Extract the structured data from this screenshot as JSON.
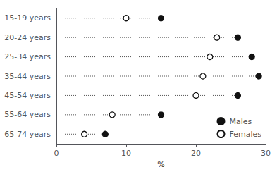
{
  "chart_data": {
    "type": "dot",
    "orientation": "horizontal",
    "categories": [
      "15-19 years",
      "20-24 years",
      "25-34 years",
      "35-44 years",
      "45-54 years",
      "55-64 years",
      "65-74 years"
    ],
    "series": [
      {
        "name": "Males",
        "color": "#111111",
        "marker": "filled",
        "values": [
          15,
          26,
          28,
          29,
          26,
          15,
          7
        ]
      },
      {
        "name": "Females",
        "color": "#111111",
        "marker": "open",
        "values": [
          10,
          23,
          22,
          21,
          20,
          8,
          4
        ]
      }
    ],
    "lines": {
      "color": "#555555",
      "line_style": "dotted",
      "values": [
        15,
        26,
        28,
        29,
        26,
        15,
        7
      ]
    },
    "xlabel": "%",
    "xlim": [
      0,
      30
    ],
    "xticks": [
      0,
      10,
      20,
      30
    ],
    "grid": false,
    "legend": "lower right"
  }
}
